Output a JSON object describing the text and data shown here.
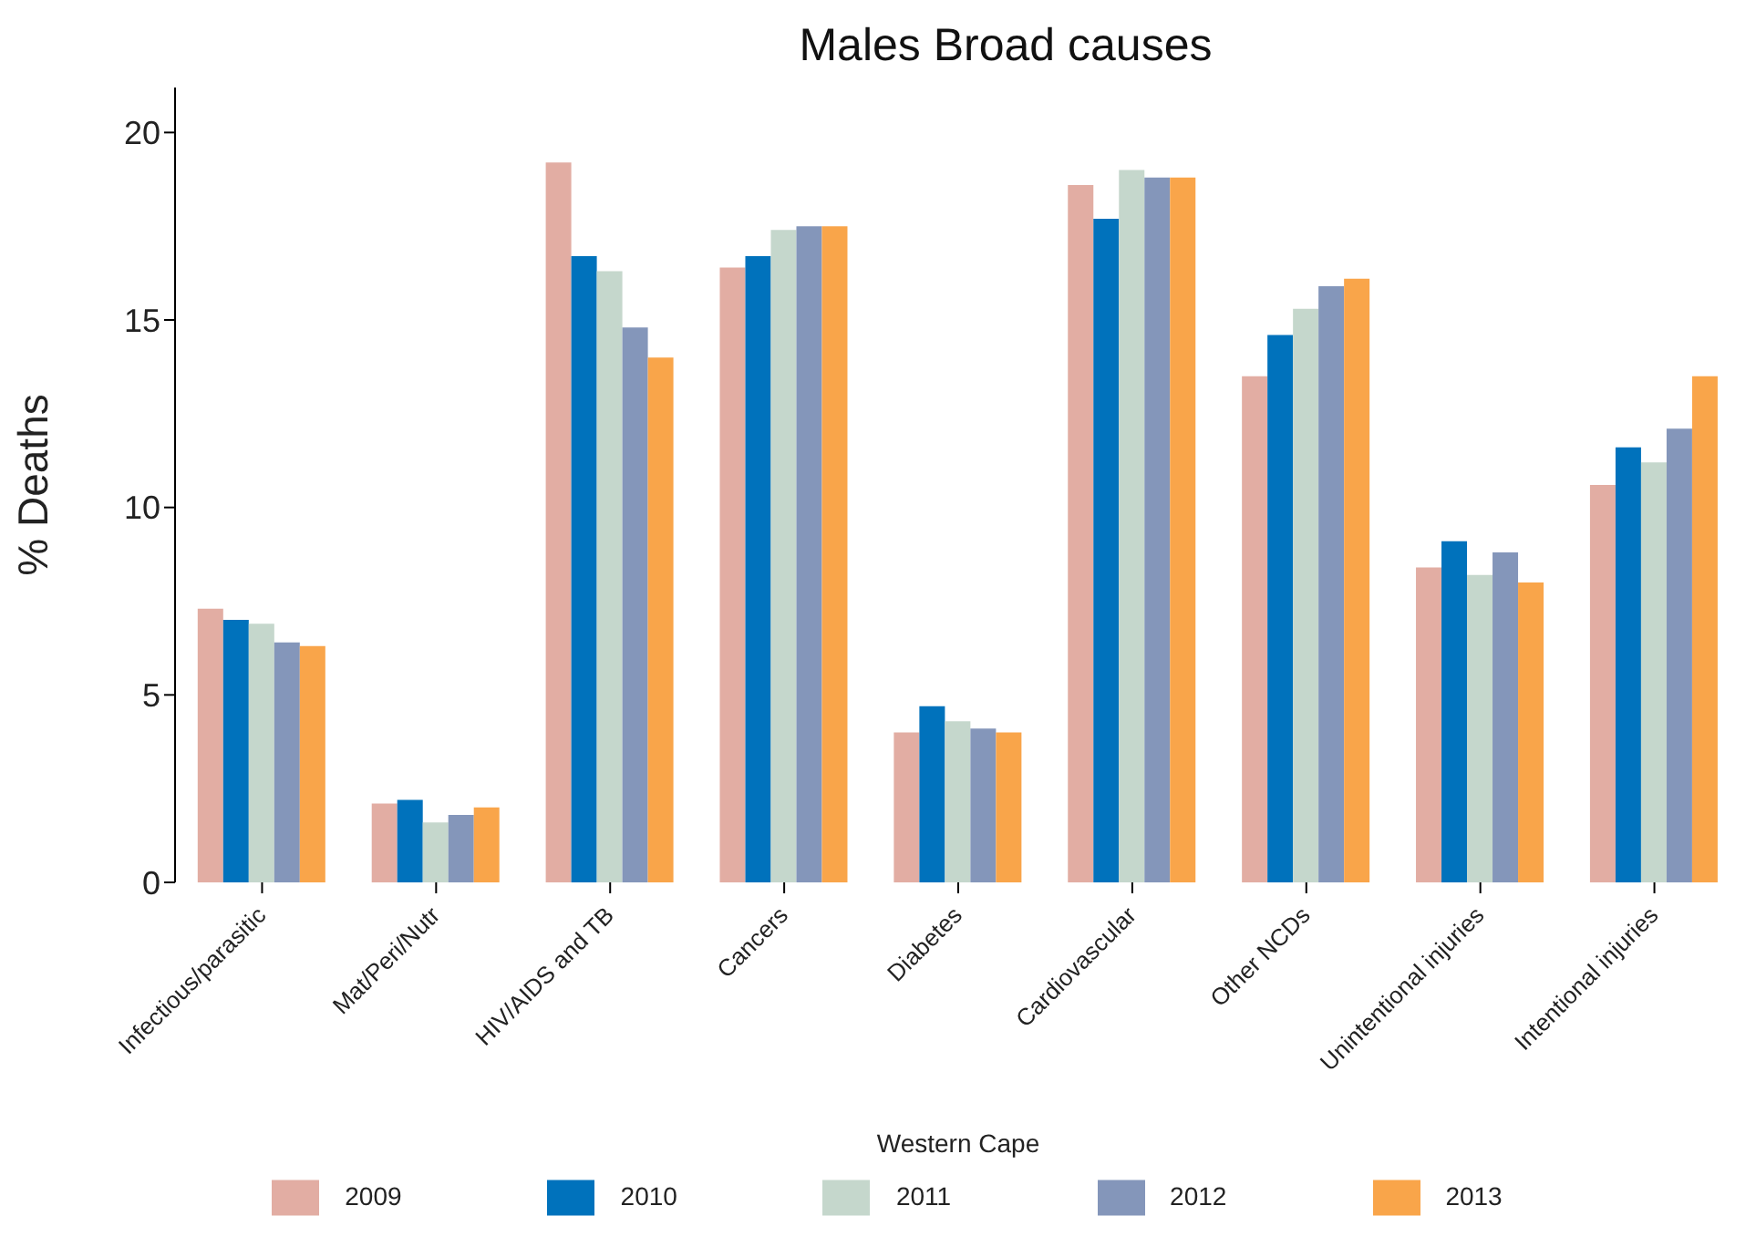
{
  "chart_data": {
    "type": "bar",
    "title": "Males Broad causes",
    "xlabel": "Western Cape",
    "ylabel": "% Deaths",
    "categories": [
      "Infectious/parasitic",
      "Mat/Peri/Nutr",
      "HIV/AIDS and TB",
      "Cancers",
      "Diabetes",
      "Cardiovascular",
      "Other NCDs",
      "Unintentional injuries",
      "Intentional injuries"
    ],
    "series": [
      {
        "name": "2009",
        "color": "#e2ada3",
        "values": [
          7.3,
          2.1,
          19.2,
          16.4,
          4.0,
          18.6,
          13.5,
          8.4,
          10.6
        ]
      },
      {
        "name": "2010",
        "color": "#0072bc",
        "values": [
          7.0,
          2.2,
          16.7,
          16.7,
          4.7,
          17.7,
          14.6,
          9.1,
          11.6
        ]
      },
      {
        "name": "2011",
        "color": "#c5d7cc",
        "values": [
          6.9,
          1.6,
          16.3,
          17.4,
          4.3,
          19.0,
          15.3,
          8.2,
          11.2
        ]
      },
      {
        "name": "2012",
        "color": "#8496ba",
        "values": [
          6.4,
          1.8,
          14.8,
          17.5,
          4.1,
          18.8,
          15.9,
          8.8,
          12.1
        ]
      },
      {
        "name": "2013",
        "color": "#f9a54a",
        "values": [
          6.3,
          2.0,
          14.0,
          17.5,
          4.0,
          18.8,
          16.1,
          8.0,
          13.5
        ]
      }
    ],
    "ylim": [
      0,
      21.2
    ],
    "yticks": [
      0,
      5,
      10,
      15,
      20
    ],
    "legend": "bottom"
  }
}
